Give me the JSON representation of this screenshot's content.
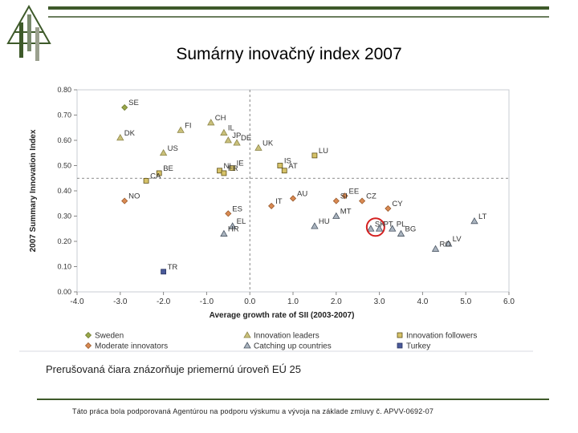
{
  "slide": {
    "title": "Sumárny inovačný index 2007",
    "caption": "Prerušovaná čiara znázorňuje priemernú úroveň EÚ 25",
    "footer": "Táto práca bola podporovaná Agentúrou na podporu výskumu a vývoja na základe zmluvy  č. APVV-0692-07"
  },
  "colors": {
    "rule": "#3e5a2a",
    "sweden": "#9aa84a",
    "leader": "#c9c07a",
    "follower": "#d6c268",
    "moderate": "#d98a52",
    "catching": "#aab4bf",
    "turkey": "#4a5a9a",
    "highlight": "#d42020"
  },
  "chart_data": {
    "type": "scatter",
    "title": "",
    "xlabel": "Average growth rate of SII (2003-2007)",
    "ylabel": "2007 Summary Innovation Index",
    "xlim": [
      -4.0,
      6.0
    ],
    "ylim": [
      0.0,
      0.8
    ],
    "xticks": [
      "-4.0",
      "-3.0",
      "-2.0",
      "-1.0",
      "0.0",
      "1.0",
      "2.0",
      "3.0",
      "4.0",
      "5.0",
      "6.0"
    ],
    "yticks": [
      "0.00",
      "0.10",
      "0.20",
      "0.30",
      "0.40",
      "0.50",
      "0.60",
      "0.70",
      "0.80"
    ],
    "reference_lines": {
      "x": 0.0,
      "y": 0.45
    },
    "highlighted": "SK",
    "series": [
      {
        "name": "Sweden",
        "marker": "diamond",
        "points": [
          {
            "label": "SE",
            "x": -2.9,
            "y": 0.73
          }
        ]
      },
      {
        "name": "Innovation leaders",
        "marker": "triangle",
        "points": [
          {
            "label": "FI",
            "x": -1.6,
            "y": 0.64
          },
          {
            "label": "DK",
            "x": -3.0,
            "y": 0.61
          },
          {
            "label": "CH",
            "x": -0.9,
            "y": 0.67
          },
          {
            "label": "IL",
            "x": -0.6,
            "y": 0.63
          },
          {
            "label": "JP",
            "x": -0.5,
            "y": 0.6
          },
          {
            "label": "DE",
            "x": -0.3,
            "y": 0.59
          },
          {
            "label": "US",
            "x": -2.0,
            "y": 0.55
          },
          {
            "label": "UK",
            "x": 0.2,
            "y": 0.57
          }
        ]
      },
      {
        "name": "Innovation followers",
        "marker": "square",
        "points": [
          {
            "label": "LU",
            "x": 1.5,
            "y": 0.54
          },
          {
            "label": "IS",
            "x": 0.7,
            "y": 0.5
          },
          {
            "label": "AT",
            "x": 0.8,
            "y": 0.48
          },
          {
            "label": "NL",
            "x": -0.7,
            "y": 0.48
          },
          {
            "label": "IE",
            "x": -0.4,
            "y": 0.49
          },
          {
            "label": "FR",
            "x": -0.6,
            "y": 0.47
          },
          {
            "label": "BE",
            "x": -2.1,
            "y": 0.47
          },
          {
            "label": "CA",
            "x": -2.4,
            "y": 0.44
          }
        ]
      },
      {
        "name": "Moderate innovators",
        "marker": "diamond",
        "points": [
          {
            "label": "NO",
            "x": -2.9,
            "y": 0.36
          },
          {
            "label": "AU",
            "x": 1.0,
            "y": 0.37
          },
          {
            "label": "EE",
            "x": 2.2,
            "y": 0.38
          },
          {
            "label": "CZ",
            "x": 2.6,
            "y": 0.36
          },
          {
            "label": "SI",
            "x": 2.0,
            "y": 0.36
          },
          {
            "label": "IT",
            "x": 0.5,
            "y": 0.34
          },
          {
            "label": "ES",
            "x": -0.5,
            "y": 0.31
          },
          {
            "label": "CY",
            "x": 3.2,
            "y": 0.33
          }
        ]
      },
      {
        "name": "Catching up countries",
        "marker": "triangle",
        "points": [
          {
            "label": "MT",
            "x": 2.0,
            "y": 0.3
          },
          {
            "label": "EL",
            "x": -0.4,
            "y": 0.26
          },
          {
            "label": "HU",
            "x": 1.5,
            "y": 0.26
          },
          {
            "label": "SK",
            "x": 2.8,
            "y": 0.25
          },
          {
            "label": "PT",
            "x": 3.0,
            "y": 0.25
          },
          {
            "label": "PL",
            "x": 3.3,
            "y": 0.25
          },
          {
            "label": "BG",
            "x": 3.5,
            "y": 0.23
          },
          {
            "label": "HR",
            "x": -0.6,
            "y": 0.23
          },
          {
            "label": "LT",
            "x": 5.2,
            "y": 0.28
          },
          {
            "label": "LV",
            "x": 4.6,
            "y": 0.19
          },
          {
            "label": "RO",
            "x": 4.3,
            "y": 0.17
          }
        ]
      },
      {
        "name": "Turkey",
        "marker": "square",
        "points": [
          {
            "label": "TR",
            "x": -2.0,
            "y": 0.08
          }
        ]
      }
    ],
    "legend_position": "bottom"
  }
}
